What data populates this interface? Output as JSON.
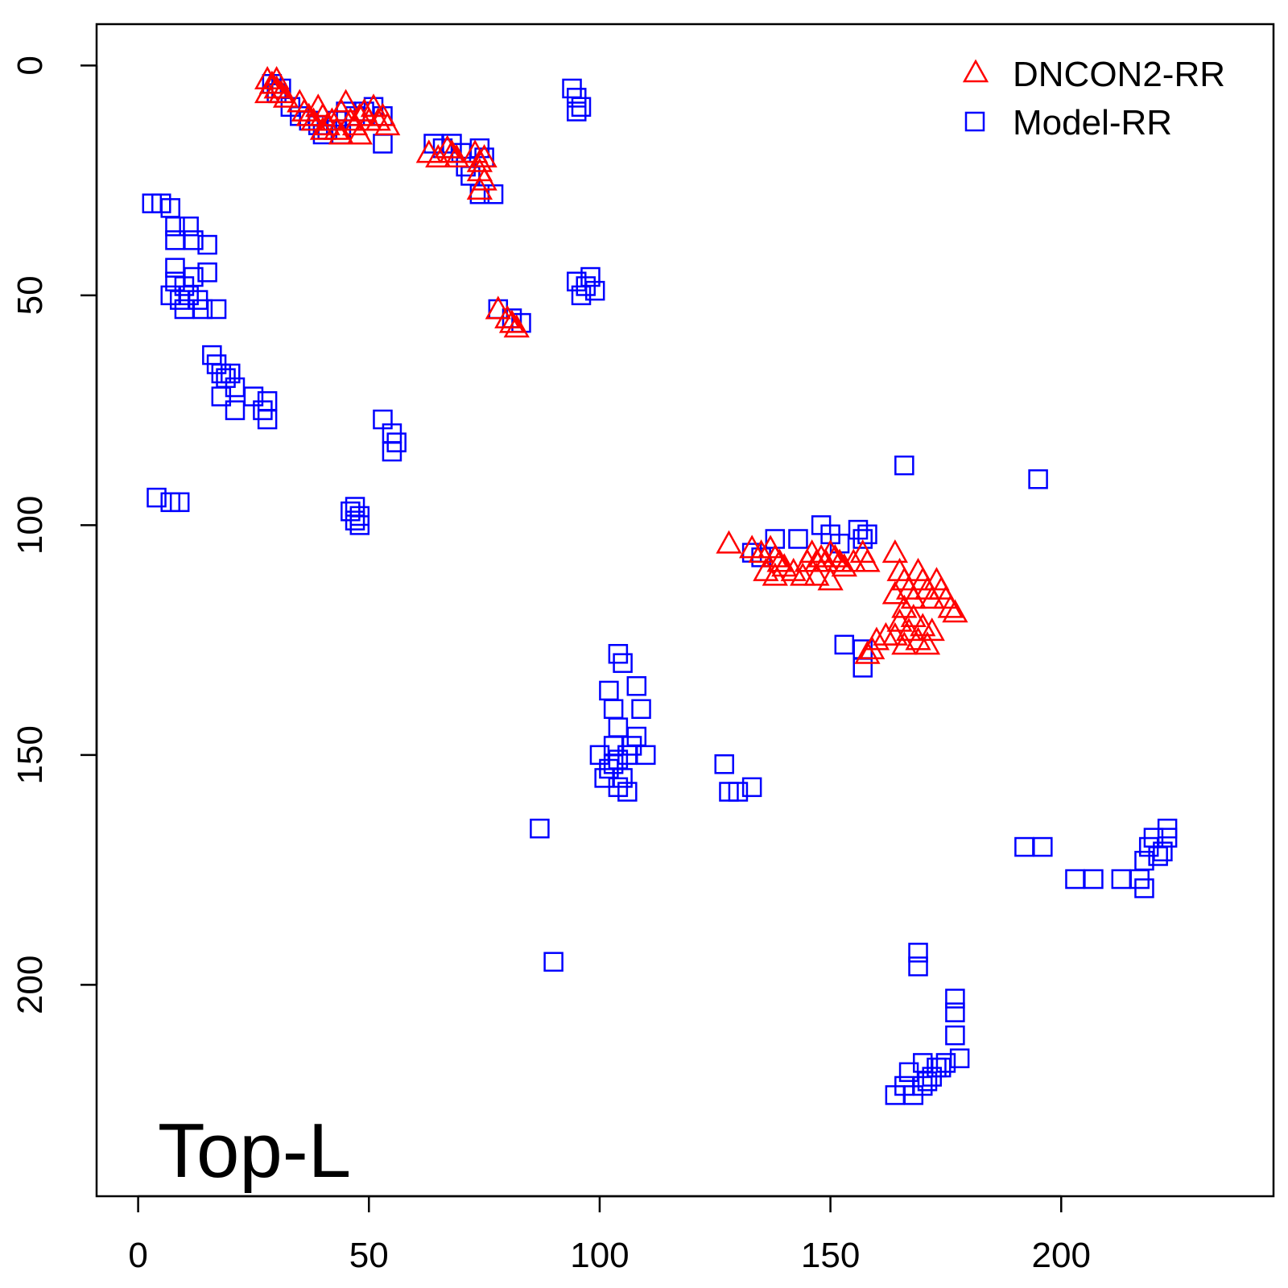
{
  "chart_data": {
    "type": "scatter",
    "title": "",
    "xlabel": "",
    "ylabel": "",
    "xlim": [
      -9,
      246
    ],
    "ylim": [
      246,
      -9
    ],
    "y_axis_reversed": true,
    "grid": false,
    "legend_position": "top-right",
    "annotation": "Top-L",
    "x_ticks": [
      0,
      50,
      100,
      150,
      200
    ],
    "x_tick_labels": [
      "0",
      "50",
      "100",
      "150",
      "200"
    ],
    "y_ticks": [
      0,
      50,
      100,
      150,
      200
    ],
    "y_tick_labels": [
      "0",
      "50",
      "100",
      "150",
      "200"
    ],
    "series": [
      {
        "name": "DNCON2-RR",
        "marker": "triangle",
        "color": "#ff0000",
        "points": [
          [
            28,
            3
          ],
          [
            29,
            4
          ],
          [
            30,
            5
          ],
          [
            31,
            6
          ],
          [
            28,
            6
          ],
          [
            30,
            3
          ],
          [
            32,
            7
          ],
          [
            35,
            8
          ],
          [
            36,
            10
          ],
          [
            37,
            11
          ],
          [
            38,
            12
          ],
          [
            39,
            9
          ],
          [
            40,
            11
          ],
          [
            41,
            13
          ],
          [
            42,
            12
          ],
          [
            43,
            14
          ],
          [
            44,
            10
          ],
          [
            45,
            8
          ],
          [
            46,
            12
          ],
          [
            47,
            13
          ],
          [
            48,
            11
          ],
          [
            49,
            10
          ],
          [
            50,
            12
          ],
          [
            51,
            9
          ],
          [
            52,
            12
          ],
          [
            53,
            11
          ],
          [
            54,
            13
          ],
          [
            40,
            14
          ],
          [
            44,
            15
          ],
          [
            48,
            15
          ],
          [
            63,
            19
          ],
          [
            65,
            20
          ],
          [
            67,
            18
          ],
          [
            68,
            19
          ],
          [
            69,
            20
          ],
          [
            73,
            19
          ],
          [
            74,
            21
          ],
          [
            75,
            20
          ],
          [
            74,
            23
          ],
          [
            75,
            25
          ],
          [
            74,
            27
          ],
          [
            78,
            53
          ],
          [
            80,
            55
          ],
          [
            81,
            56
          ],
          [
            82,
            57
          ],
          [
            128,
            104
          ],
          [
            133,
            105
          ],
          [
            135,
            106
          ],
          [
            137,
            105
          ],
          [
            138,
            107
          ],
          [
            139,
            108
          ],
          [
            140,
            109
          ],
          [
            136,
            110
          ],
          [
            138,
            111
          ],
          [
            142,
            110
          ],
          [
            144,
            111
          ],
          [
            145,
            108
          ],
          [
            146,
            106
          ],
          [
            147,
            108
          ],
          [
            148,
            107
          ],
          [
            149,
            108
          ],
          [
            150,
            106
          ],
          [
            151,
            107
          ],
          [
            152,
            108
          ],
          [
            153,
            109
          ],
          [
            147,
            111
          ],
          [
            150,
            112
          ],
          [
            155,
            108
          ],
          [
            157,
            106
          ],
          [
            158,
            108
          ],
          [
            164,
            106
          ],
          [
            165,
            110
          ],
          [
            166,
            112
          ],
          [
            167,
            114
          ],
          [
            168,
            116
          ],
          [
            169,
            110
          ],
          [
            170,
            112
          ],
          [
            171,
            114
          ],
          [
            172,
            116
          ],
          [
            173,
            112
          ],
          [
            174,
            114
          ],
          [
            175,
            116
          ],
          [
            176,
            118
          ],
          [
            177,
            119
          ],
          [
            164,
            115
          ],
          [
            166,
            118
          ],
          [
            168,
            120
          ],
          [
            170,
            122
          ],
          [
            172,
            123
          ],
          [
            165,
            121
          ],
          [
            167,
            123
          ],
          [
            169,
            125
          ],
          [
            171,
            126
          ],
          [
            162,
            124
          ],
          [
            164,
            124
          ],
          [
            166,
            126
          ],
          [
            160,
            125
          ],
          [
            159,
            127
          ],
          [
            158,
            128
          ]
        ]
      },
      {
        "name": "Model-RR",
        "marker": "square",
        "color": "#0000ff",
        "points": [
          [
            29,
            4
          ],
          [
            30,
            6
          ],
          [
            31,
            5
          ],
          [
            33,
            9
          ],
          [
            35,
            11
          ],
          [
            37,
            12
          ],
          [
            39,
            13
          ],
          [
            41,
            14
          ],
          [
            43,
            12
          ],
          [
            45,
            10
          ],
          [
            47,
            11
          ],
          [
            49,
            10
          ],
          [
            51,
            9
          ],
          [
            53,
            11
          ],
          [
            53,
            17
          ],
          [
            40,
            15
          ],
          [
            44,
            15
          ],
          [
            64,
            17
          ],
          [
            66,
            18
          ],
          [
            68,
            17
          ],
          [
            70,
            19
          ],
          [
            71,
            22
          ],
          [
            72,
            24
          ],
          [
            74,
            18
          ],
          [
            75,
            20
          ],
          [
            74,
            28
          ],
          [
            77,
            28
          ],
          [
            94,
            5
          ],
          [
            95,
            7
          ],
          [
            96,
            9
          ],
          [
            95,
            10
          ],
          [
            3,
            30
          ],
          [
            5,
            30
          ],
          [
            7,
            31
          ],
          [
            8,
            35
          ],
          [
            8,
            38
          ],
          [
            11,
            35
          ],
          [
            12,
            38
          ],
          [
            15,
            39
          ],
          [
            15,
            45
          ],
          [
            8,
            44
          ],
          [
            8,
            47
          ],
          [
            10,
            48
          ],
          [
            12,
            46
          ],
          [
            7,
            50
          ],
          [
            9,
            51
          ],
          [
            11,
            50
          ],
          [
            13,
            51
          ],
          [
            14,
            53
          ],
          [
            17,
            53
          ],
          [
            10,
            53
          ],
          [
            16,
            63
          ],
          [
            17,
            65
          ],
          [
            18,
            67
          ],
          [
            19,
            68
          ],
          [
            20,
            67
          ],
          [
            21,
            70
          ],
          [
            18,
            72
          ],
          [
            21,
            75
          ],
          [
            25,
            72
          ],
          [
            27,
            75
          ],
          [
            28,
            77
          ],
          [
            28,
            73
          ],
          [
            95,
            47
          ],
          [
            97,
            48
          ],
          [
            99,
            49
          ],
          [
            96,
            50
          ],
          [
            98,
            46
          ],
          [
            78,
            53
          ],
          [
            81,
            55
          ],
          [
            83,
            56
          ],
          [
            53,
            77
          ],
          [
            55,
            80
          ],
          [
            56,
            82
          ],
          [
            55,
            84
          ],
          [
            4,
            94
          ],
          [
            7,
            95
          ],
          [
            9,
            95
          ],
          [
            46,
            97
          ],
          [
            47,
            99
          ],
          [
            48,
            98
          ],
          [
            48,
            100
          ],
          [
            47,
            96
          ],
          [
            102,
            136
          ],
          [
            103,
            140
          ],
          [
            104,
            144
          ],
          [
            103,
            148
          ],
          [
            104,
            151
          ],
          [
            105,
            155
          ],
          [
            104,
            157
          ],
          [
            102,
            153
          ],
          [
            100,
            150
          ],
          [
            106,
            150
          ],
          [
            107,
            148
          ],
          [
            108,
            146
          ],
          [
            109,
            140
          ],
          [
            108,
            135
          ],
          [
            110,
            150
          ],
          [
            105,
            130
          ],
          [
            104,
            128
          ],
          [
            103,
            152
          ],
          [
            101,
            155
          ],
          [
            106,
            158
          ],
          [
            127,
            152
          ],
          [
            128,
            158
          ],
          [
            130,
            158
          ],
          [
            133,
            157
          ],
          [
            87,
            166
          ],
          [
            90,
            195
          ],
          [
            148,
            100
          ],
          [
            150,
            102
          ],
          [
            152,
            104
          ],
          [
            156,
            101
          ],
          [
            157,
            103
          ],
          [
            158,
            102
          ],
          [
            143,
            103
          ],
          [
            138,
            103
          ],
          [
            135,
            107
          ],
          [
            133,
            106
          ],
          [
            153,
            126
          ],
          [
            157,
            127
          ],
          [
            157,
            131
          ],
          [
            166,
            87
          ],
          [
            195,
            90
          ],
          [
            192,
            170
          ],
          [
            196,
            170
          ],
          [
            203,
            177
          ],
          [
            207,
            177
          ],
          [
            213,
            177
          ],
          [
            217,
            177
          ],
          [
            218,
            173
          ],
          [
            219,
            170
          ],
          [
            220,
            168
          ],
          [
            222,
            171
          ],
          [
            223,
            166
          ],
          [
            223,
            168
          ],
          [
            221,
            172
          ],
          [
            218,
            179
          ],
          [
            169,
            193
          ],
          [
            169,
            196
          ],
          [
            177,
            203
          ],
          [
            177,
            206
          ],
          [
            177,
            211
          ],
          [
            178,
            216
          ],
          [
            175,
            217
          ],
          [
            173,
            218
          ],
          [
            172,
            220
          ],
          [
            171,
            221
          ],
          [
            170,
            222
          ],
          [
            168,
            224
          ],
          [
            166,
            222
          ],
          [
            164,
            224
          ],
          [
            167,
            219
          ],
          [
            170,
            217
          ],
          [
            174,
            218
          ]
        ]
      }
    ]
  }
}
